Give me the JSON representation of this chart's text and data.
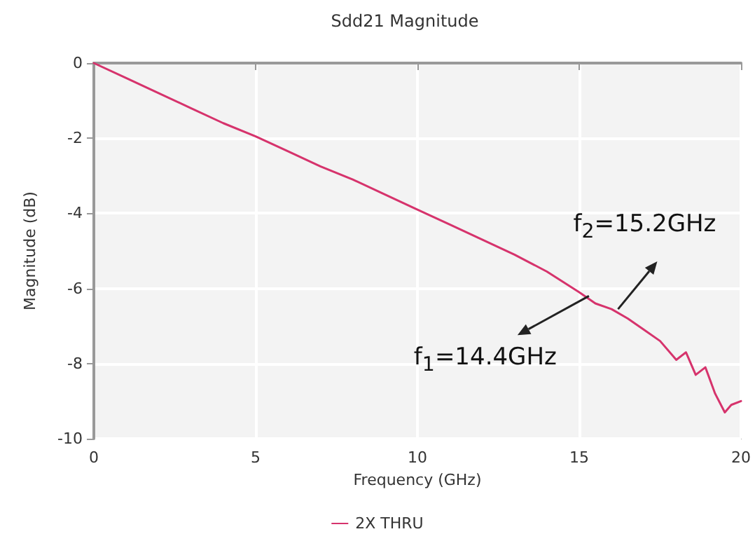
{
  "chart_data": {
    "type": "line",
    "title": "Sdd21 Magnitude",
    "xlabel": "Frequency (GHz)",
    "ylabel": "Magnitude (dB)",
    "x": [
      0,
      1,
      2,
      3,
      4,
      5,
      6,
      7,
      8,
      9,
      10,
      11,
      12,
      13,
      14,
      15,
      15.5,
      16,
      16.5,
      17,
      17.5,
      18,
      18.3,
      18.6,
      18.9,
      19.2,
      19.5,
      19.7,
      20
    ],
    "series": [
      {
        "name": "2X THRU",
        "color": "#d6336c",
        "values": [
          0,
          -0.4,
          -0.8,
          -1.2,
          -1.6,
          -1.95,
          -2.35,
          -2.75,
          -3.1,
          -3.5,
          -3.9,
          -4.3,
          -4.7,
          -5.1,
          -5.55,
          -6.1,
          -6.4,
          -6.55,
          -6.8,
          -7.1,
          -7.4,
          -7.9,
          -7.7,
          -8.3,
          -8.1,
          -8.8,
          -9.3,
          -9.1,
          -9.0
        ]
      }
    ],
    "xlim": [
      0,
      20
    ],
    "xticks": [
      0,
      5,
      10,
      15,
      20
    ],
    "ylim": [
      -10,
      0
    ],
    "yticks": [
      -10,
      -8,
      -6,
      -4,
      -2,
      0
    ],
    "grid": true,
    "legend": "bottom",
    "marker": "none",
    "line_style": "solid",
    "annotations": [
      {
        "text": "f$_{2}$=15.2GHz",
        "x": 16.2,
        "y": -6.55
      },
      {
        "text": "f$_{1}$=14.4GHz",
        "x": 15.3,
        "y": -6.2
      }
    ]
  }
}
